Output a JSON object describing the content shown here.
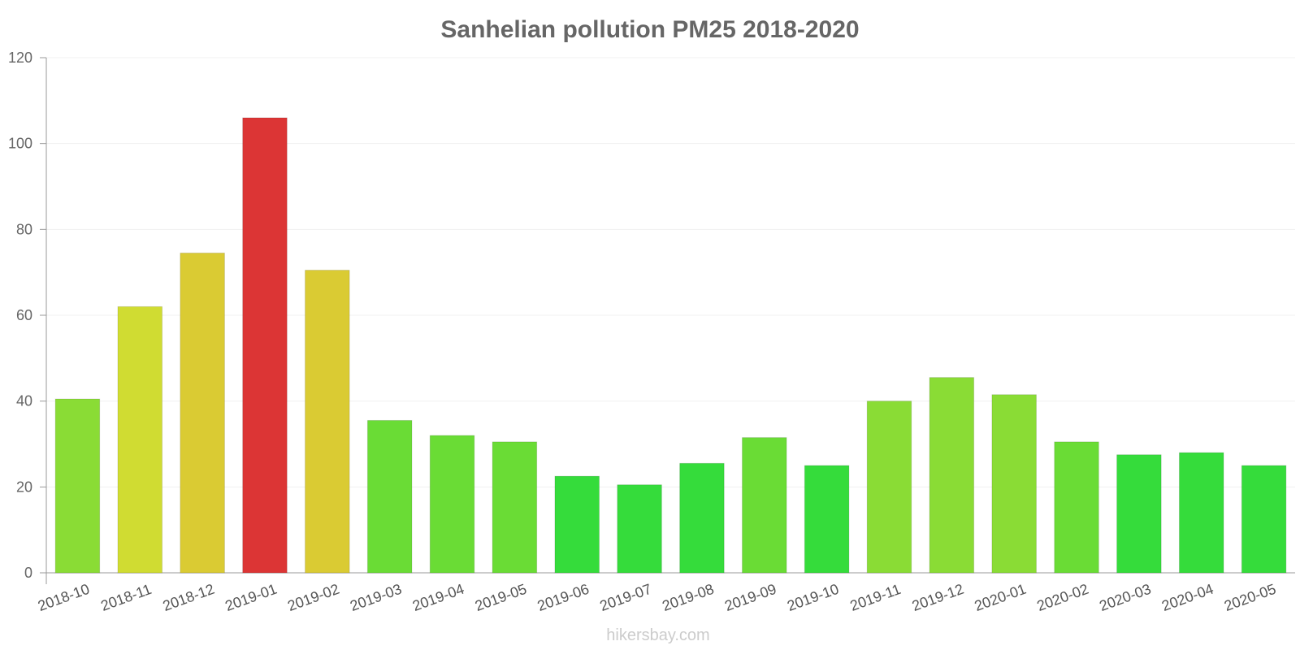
{
  "chart_data": {
    "type": "bar",
    "title": "Sanhelian pollution PM25 2018-2020",
    "xlabel": "",
    "ylabel": "",
    "ylim": [
      0,
      120
    ],
    "yticks": [
      0,
      20,
      40,
      60,
      80,
      100,
      120
    ],
    "grid": true,
    "categories": [
      "2018-10",
      "2018-11",
      "2018-12",
      "2019-01",
      "2019-02",
      "2019-03",
      "2019-04",
      "2019-05",
      "2019-06",
      "2019-07",
      "2019-08",
      "2019-09",
      "2019-10",
      "2019-11",
      "2019-12",
      "2020-01",
      "2020-02",
      "2020-03",
      "2020-04",
      "2020-05"
    ],
    "values": [
      40.5,
      62,
      74.5,
      106,
      70.5,
      35.5,
      32,
      30.5,
      22.5,
      20.5,
      25.5,
      31.5,
      25,
      40,
      45.5,
      41.5,
      30.5,
      27.5,
      28,
      25
    ],
    "colors": [
      "#8adc35",
      "#d0dc32",
      "#dacb33",
      "#dc3535",
      "#dacb33",
      "#6adc35",
      "#6adc35",
      "#6adc35",
      "#35dc3b",
      "#35dc3b",
      "#35dc3b",
      "#6adc35",
      "#35dc3b",
      "#8adc35",
      "#8adc35",
      "#8adc35",
      "#6adc35",
      "#35dc3b",
      "#35dc3b",
      "#35dc3b"
    ]
  },
  "watermark": "hikersbay.com"
}
